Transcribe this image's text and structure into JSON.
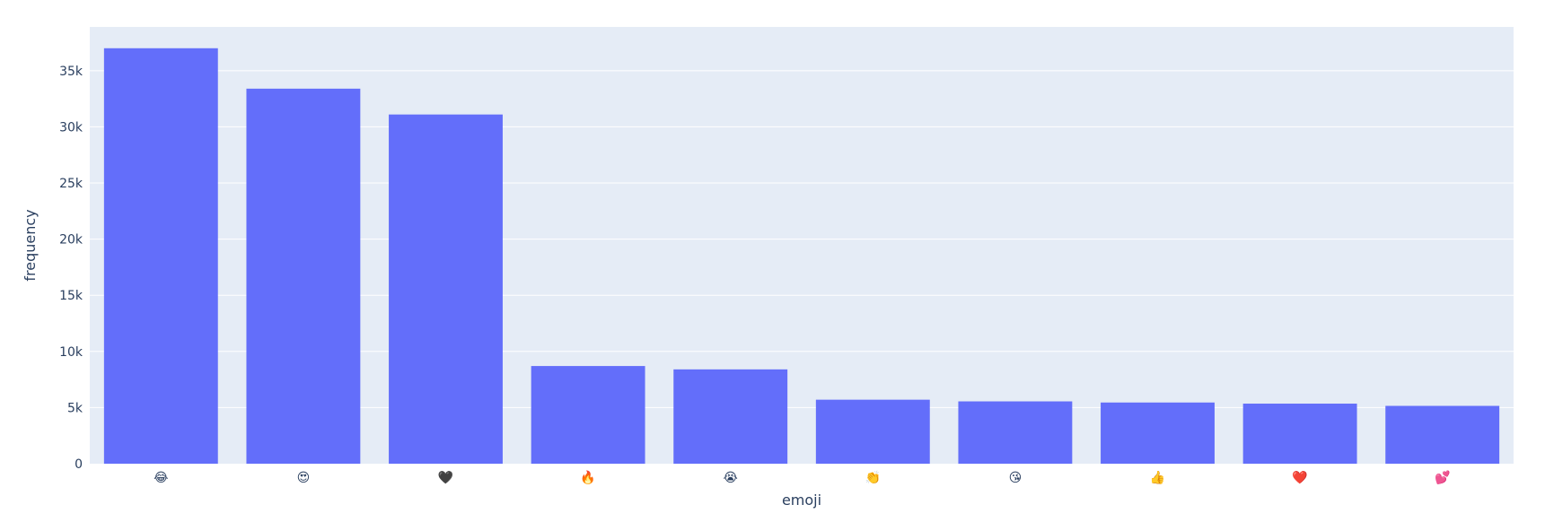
{
  "chart_data": {
    "type": "bar",
    "title": "",
    "xlabel": "emoji",
    "ylabel": "frequency",
    "categories": [
      "😂",
      "😍",
      "🖤",
      "🔥",
      "😭",
      "👏",
      "😘",
      "👍",
      "❤️",
      "💕"
    ],
    "values": [
      37000,
      33400,
      31100,
      8700,
      8400,
      5700,
      5550,
      5450,
      5350,
      5150
    ],
    "ylim": [
      0,
      38900
    ],
    "yticks": [
      0,
      5000,
      10000,
      15000,
      20000,
      25000,
      30000,
      35000
    ],
    "ytick_labels": [
      "0",
      "5k",
      "10k",
      "15k",
      "20k",
      "25k",
      "30k",
      "35k"
    ],
    "grid": true,
    "legend": "none",
    "colors": {
      "bar": "#636efa",
      "plot_background": "#e5ecf6",
      "grid": "#ffffff",
      "text": "#2a3f5f"
    }
  }
}
